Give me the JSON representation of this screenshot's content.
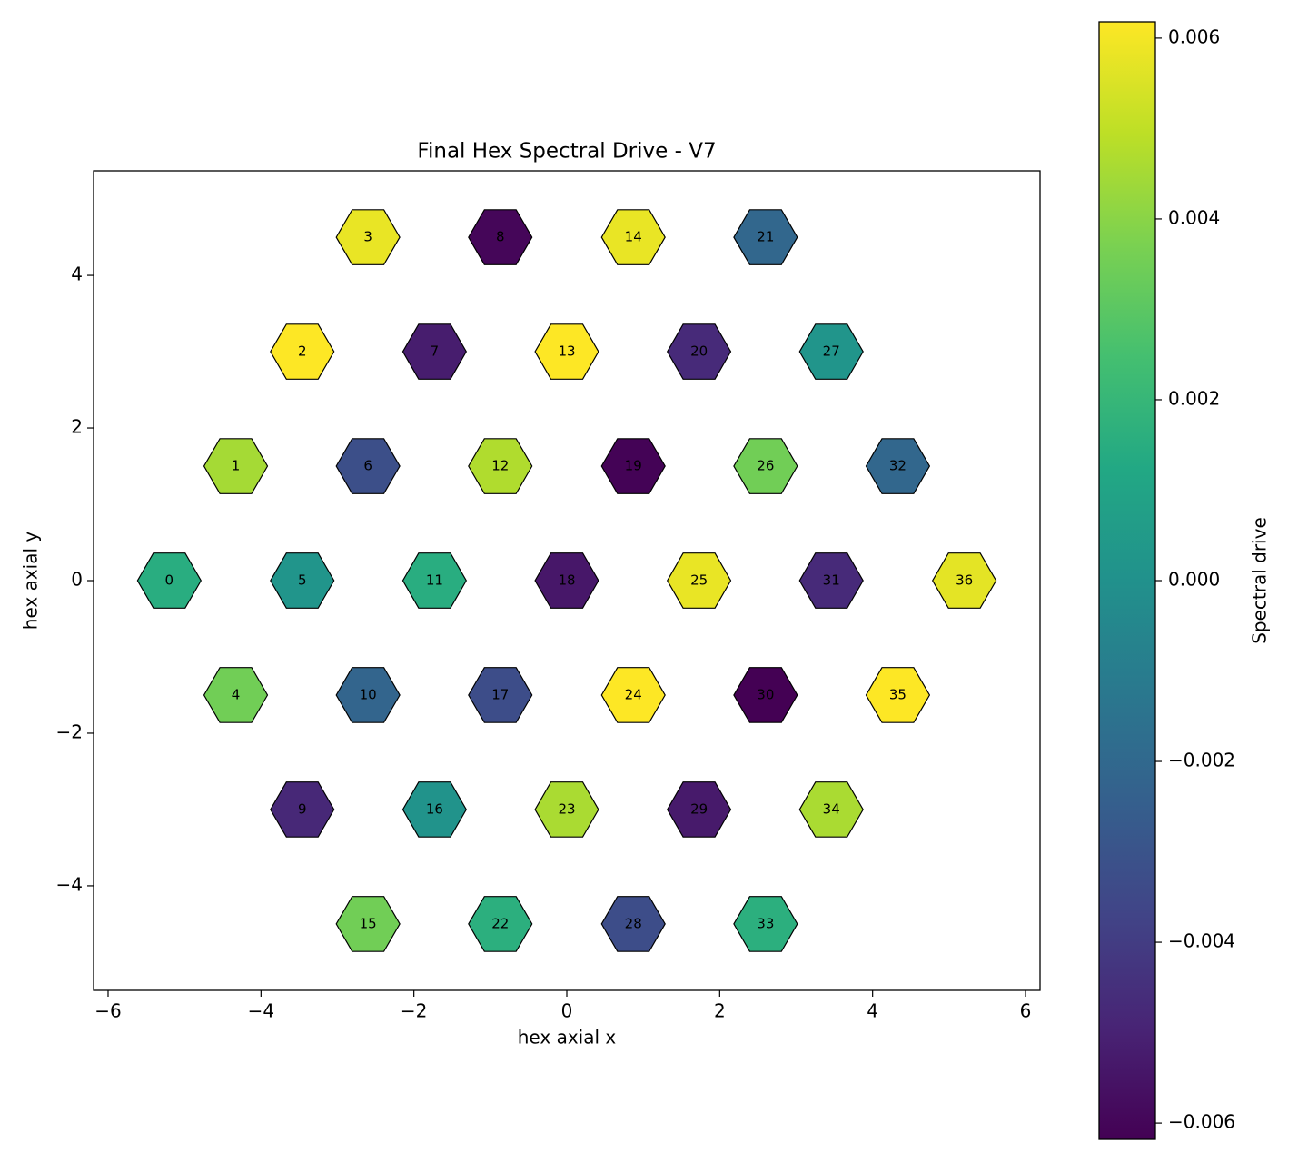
{
  "chart_data": {
    "type": "hexmap",
    "title": "Final Hex Spectral Drive - V7",
    "x_label": "hex axial x",
    "y_label": "hex axial y",
    "colorbar_label": "Spectral drive",
    "colormap": "viridis",
    "labels": [
      "0",
      "1",
      "2",
      "3",
      "4",
      "5",
      "6",
      "7",
      "8",
      "9",
      "10",
      "11",
      "12",
      "13",
      "14",
      "15",
      "16",
      "17",
      "18",
      "19",
      "20",
      "21",
      "22",
      "23",
      "24",
      "25",
      "26",
      "27",
      "28",
      "29",
      "30",
      "31",
      "32",
      "33",
      "34",
      "35",
      "36"
    ],
    "x": [
      -5.2,
      -4.33,
      -3.46,
      -2.6,
      -4.33,
      -3.46,
      -2.6,
      -1.73,
      -0.87,
      -3.46,
      -2.6,
      -1.73,
      -0.87,
      0,
      0.87,
      -2.6,
      -1.73,
      -0.87,
      0,
      0.87,
      1.73,
      2.6,
      -0.87,
      0,
      0.87,
      1.73,
      2.6,
      3.46,
      0.87,
      1.73,
      2.6,
      3.46,
      4.33,
      2.6,
      3.46,
      4.33,
      5.2
    ],
    "y": [
      0,
      1.5,
      3,
      4.5,
      -1.5,
      0,
      1.5,
      3,
      4.5,
      -3,
      -1.5,
      0,
      1.5,
      3,
      4.5,
      -4.5,
      -3,
      -1.5,
      0,
      1.5,
      3,
      4.5,
      -4.5,
      -3,
      -1.5,
      0,
      1.5,
      3,
      -4.5,
      -3,
      -1.5,
      0,
      1.5,
      -4.5,
      -3,
      -1.5,
      0
    ],
    "values": [
      0.0015,
      0.0045,
      0.0062,
      0.0058,
      0.0035,
      0.0002,
      -0.0032,
      -0.0052,
      -0.006,
      -0.0048,
      -0.0022,
      0.0015,
      0.0047,
      0.0062,
      0.0058,
      0.0035,
      0.0001,
      -0.0033,
      -0.0054,
      -0.0061,
      -0.0047,
      -0.0021,
      0.0016,
      0.0046,
      0.0062,
      0.0058,
      0.0035,
      0.0002,
      -0.0033,
      -0.0053,
      -0.0062,
      -0.0047,
      -0.0021,
      0.0016,
      0.0046,
      0.0062,
      0.0057
    ],
    "xlim": [
      -6.19,
      6.19
    ],
    "ylim": [
      -5.37,
      5.37
    ],
    "clim": [
      -0.00618,
      0.00618
    ],
    "xticks": [
      {
        "value": -6,
        "label": "−6"
      },
      {
        "value": -4,
        "label": "−4"
      },
      {
        "value": -2,
        "label": "−2"
      },
      0,
      2,
      4,
      6
    ],
    "yticks": [
      {
        "value": -4,
        "label": "−4"
      },
      {
        "value": -2,
        "label": "−2"
      },
      0,
      2,
      4
    ],
    "cticks": [
      {
        "value": -0.006,
        "label": "−0.006"
      },
      {
        "value": -0.004,
        "label": "−0.004"
      },
      {
        "value": -0.002,
        "label": "−0.002"
      },
      {
        "value": 0,
        "label": "0.000"
      },
      0.002,
      0.004,
      0.006
    ]
  }
}
